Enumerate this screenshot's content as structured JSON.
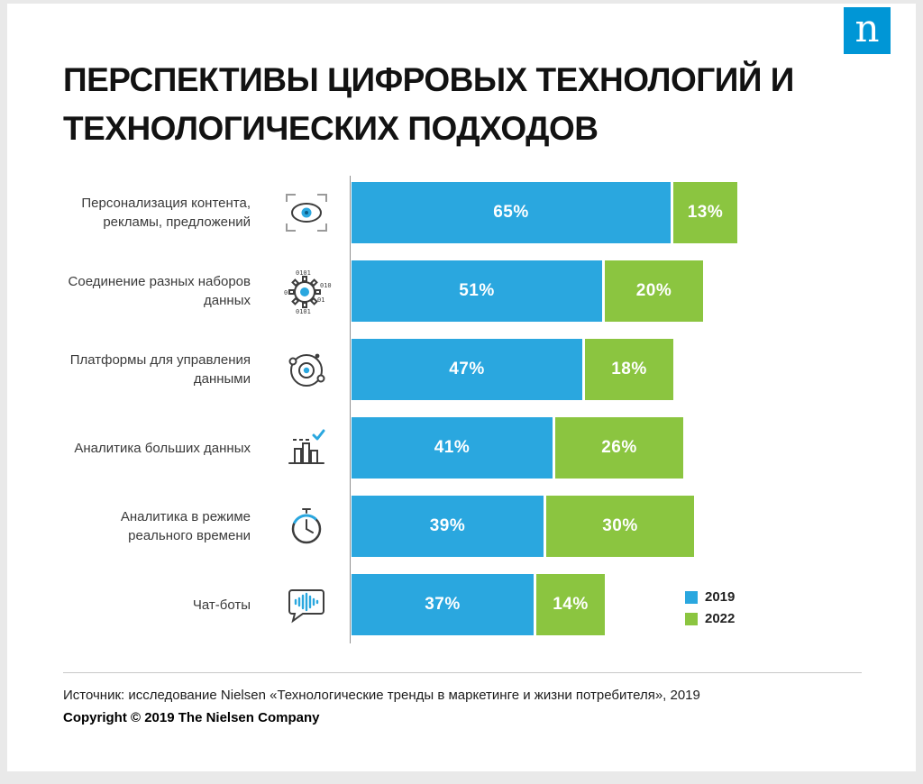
{
  "logo": {
    "letter": "n",
    "color": "#0096d6"
  },
  "title": {
    "line1": "ПЕРСПЕКТИВЫ ЦИФРОВЫХ ТЕХНОЛОГИЙ И",
    "line2": "ТЕХНОЛОГИЧЕСКИХ ПОДХОДОВ"
  },
  "chart_data": {
    "type": "bar",
    "orientation": "horizontal",
    "stacked": true,
    "categories": [
      "Персонализация контента, рекламы, предложений",
      "Соединение разных наборов данных",
      "Платформы для управления данными",
      "Аналитика больших данных",
      "Аналитика  в режиме реального времени",
      "Чат-боты"
    ],
    "icons": [
      "eye-viewfinder",
      "gear-data",
      "orbit-data",
      "analytics-check",
      "clock",
      "chat-bot"
    ],
    "series": [
      {
        "name": "2019",
        "color": "#2aa7df",
        "values": [
          65,
          51,
          47,
          41,
          39,
          37
        ]
      },
      {
        "name": "2022",
        "color": "#8bc540",
        "values": [
          13,
          20,
          18,
          26,
          30,
          14
        ]
      }
    ],
    "value_suffix": "%",
    "xlim": [
      0,
      100
    ],
    "legend_position": "bottom-right",
    "grid": false
  },
  "footer": {
    "source": "Источник: исследование Nielsen «Технологические тренды в маркетинге и жизни потребителя», 2019",
    "copyright": "Copyright © 2019 The Nielsen Company"
  }
}
